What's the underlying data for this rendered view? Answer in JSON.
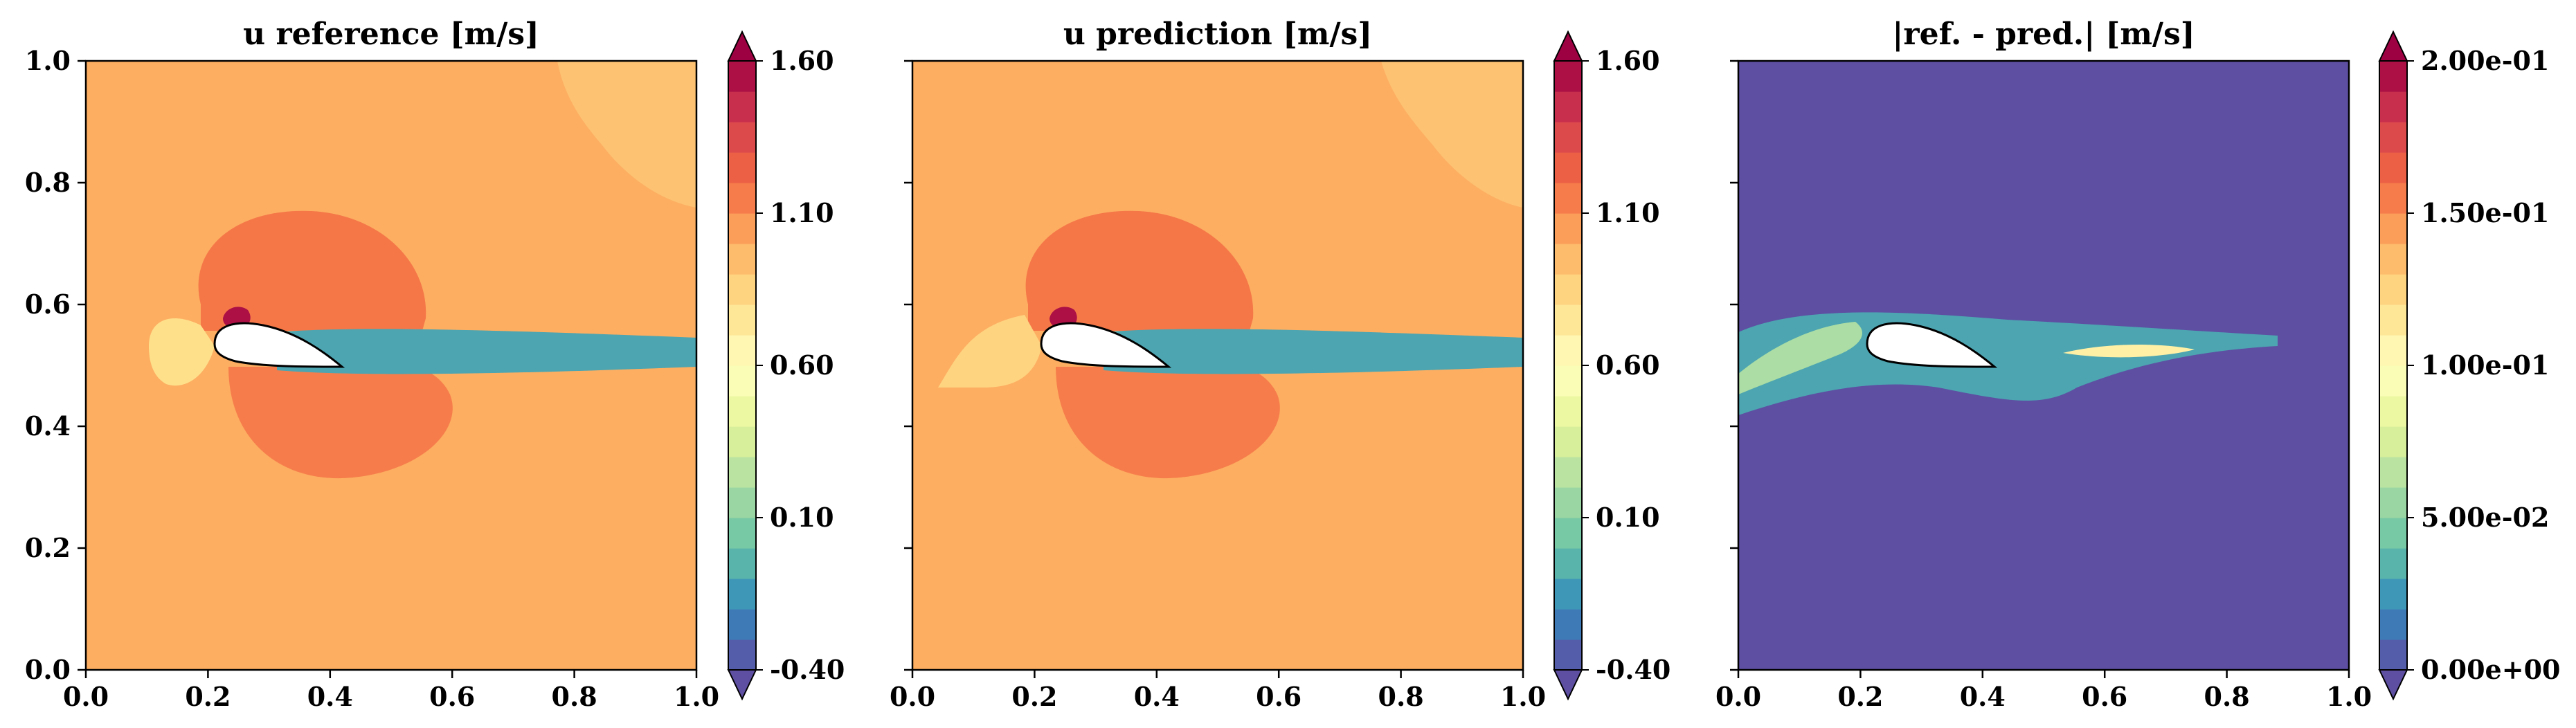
{
  "figure": {
    "colormap": [
      "#5e4fa2",
      "#3288bd",
      "#66c2a5",
      "#abdda4",
      "#e6f598",
      "#ffffbf",
      "#fee08b",
      "#fdae61",
      "#f46d43",
      "#d53e4f",
      "#9e0142"
    ]
  },
  "chart_data": [
    {
      "type": "contour",
      "title": "u reference [m/s]",
      "xlabel": "",
      "ylabel": "",
      "xlim": [
        0,
        1
      ],
      "ylim": [
        0,
        1
      ],
      "x_ticks": [
        "0.0",
        "0.2",
        "0.4",
        "0.6",
        "0.8",
        "1.0"
      ],
      "y_ticks": [
        "0.0",
        "0.2",
        "0.4",
        "0.6",
        "0.8",
        "1.0"
      ],
      "colorbar": {
        "range": [
          -0.4,
          1.6
        ],
        "ticks": [
          "1.60",
          "1.10",
          "0.60",
          "0.10",
          "-0.40"
        ],
        "tick_values": [
          1.6,
          1.1,
          0.6,
          0.1,
          -0.4
        ],
        "levels": 20,
        "extend": "both"
      },
      "field": {
        "background": 1.0,
        "airfoil": {
          "leading_edge": [
            0.21,
            0.53
          ],
          "trailing_edge": [
            0.405,
            0.495
          ]
        },
        "regions": [
          {
            "name": "upper-acceleration-lobe",
            "value": 1.17
          },
          {
            "name": "lower-acceleration-lobe",
            "value": 1.15
          },
          {
            "name": "suction-peak",
            "value": 1.55
          },
          {
            "name": "stagnation-region",
            "value": 0.8
          },
          {
            "name": "wake-core",
            "value": -0.1
          },
          {
            "name": "upper-right-region",
            "value": 0.92
          }
        ]
      }
    },
    {
      "type": "contour",
      "title": "u prediction [m/s]",
      "xlabel": "",
      "ylabel": "",
      "xlim": [
        0,
        1
      ],
      "ylim": [
        0,
        1
      ],
      "x_ticks": [
        "0.0",
        "0.2",
        "0.4",
        "0.6",
        "0.8",
        "1.0"
      ],
      "y_ticks": [],
      "colorbar": {
        "range": [
          -0.4,
          1.6
        ],
        "ticks": [
          "1.60",
          "1.10",
          "0.60",
          "0.10",
          "-0.40"
        ],
        "tick_values": [
          1.6,
          1.1,
          0.6,
          0.1,
          -0.4
        ],
        "levels": 20,
        "extend": "both"
      },
      "field": {
        "background": 1.0,
        "airfoil": {
          "leading_edge": [
            0.21,
            0.53
          ],
          "trailing_edge": [
            0.405,
            0.495
          ]
        },
        "regions": [
          {
            "name": "upper-acceleration-lobe",
            "value": 1.17
          },
          {
            "name": "lower-acceleration-lobe",
            "value": 1.15
          },
          {
            "name": "suction-peak",
            "value": 1.55
          },
          {
            "name": "stagnation-region",
            "value": 0.85
          },
          {
            "name": "wake-core",
            "value": -0.1
          },
          {
            "name": "upper-right-region",
            "value": 0.92
          }
        ]
      }
    },
    {
      "type": "contour",
      "title": "|ref. - pred.| [m/s]",
      "xlabel": "",
      "ylabel": "",
      "xlim": [
        0,
        1
      ],
      "ylim": [
        0,
        1
      ],
      "x_ticks": [
        "0.0",
        "0.2",
        "0.4",
        "0.6",
        "0.8",
        "1.0"
      ],
      "y_ticks": [],
      "colorbar": {
        "range": [
          0,
          0.2
        ],
        "ticks": [
          "2.00e-01",
          "1.50e-01",
          "1.00e-01",
          "5.00e-02",
          "0.00e+00"
        ],
        "tick_values": [
          0.2,
          0.15,
          0.1,
          0.05,
          0.0
        ],
        "levels": 20,
        "extend": "both"
      },
      "field": {
        "background": 0.0,
        "airfoil": {
          "leading_edge": [
            0.21,
            0.53
          ],
          "trailing_edge": [
            0.405,
            0.495
          ]
        },
        "regions": [
          {
            "name": "wake-error-band",
            "value": 0.03
          },
          {
            "name": "leading-edge-error-streaks",
            "value": 0.06
          },
          {
            "name": "wake-error-peak",
            "value": 0.11
          }
        ]
      }
    }
  ]
}
